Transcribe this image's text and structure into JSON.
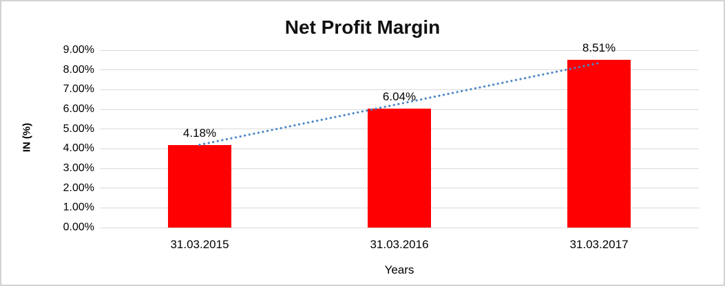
{
  "chart_data": {
    "type": "bar",
    "title": "Net Profit Margin",
    "xlabel": "Years",
    "ylabel": "IN (%)",
    "categories": [
      "31.03.2015",
      "31.03.2016",
      "31.03.2017"
    ],
    "values": [
      4.18,
      6.04,
      8.51
    ],
    "value_labels": [
      "4.18%",
      "6.04%",
      "8.51%"
    ],
    "ylim": [
      0,
      9
    ],
    "ytick_labels": [
      "0.00%",
      "1.00%",
      "2.00%",
      "3.00%",
      "4.00%",
      "5.00%",
      "6.00%",
      "7.00%",
      "8.00%",
      "9.00%"
    ],
    "grid": true,
    "legend_position": "none",
    "bar_color": "#FF0000",
    "gridline_color": "#D9D9D9",
    "frame_color": "#D2D2D2",
    "trendline": {
      "type": "linear",
      "style": "dotted",
      "color": "#4A86C8",
      "start_value": 4.2,
      "end_value": 8.35
    }
  }
}
